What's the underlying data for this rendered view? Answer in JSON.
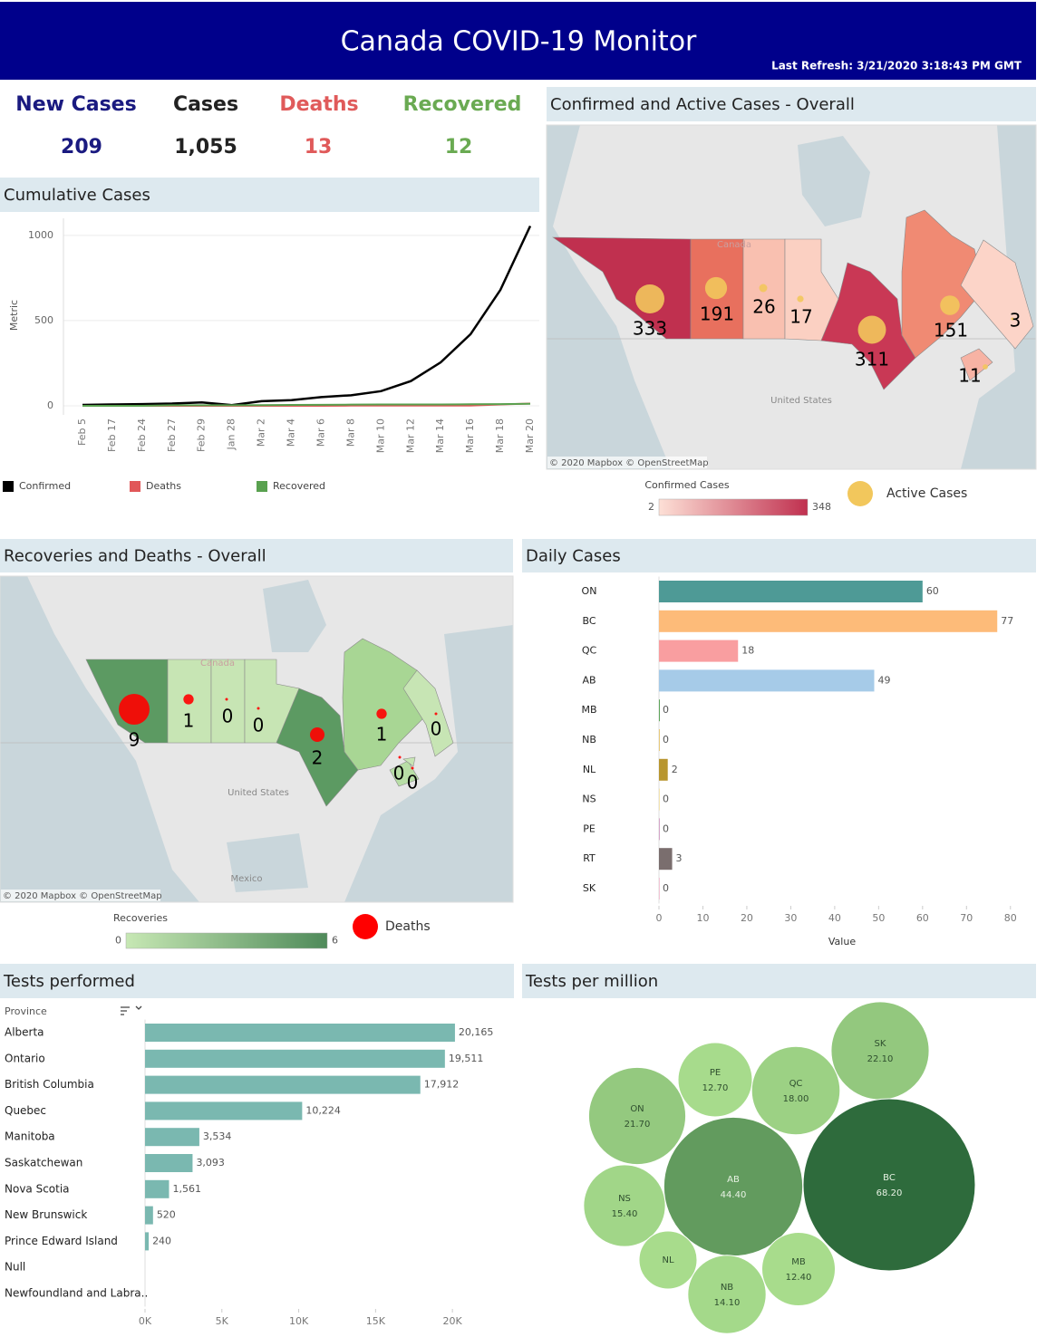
{
  "header": {
    "title": "Canada COVID-19 Monitor",
    "refresh": "Last Refresh: 3/21/2020 3:18:43 PM GMT"
  },
  "kpis": [
    {
      "label": "New Cases",
      "value": "209",
      "color": "#1a1a80"
    },
    {
      "label": "Cases",
      "value": "1,055",
      "color": "#222222"
    },
    {
      "label": "Deaths",
      "value": "13",
      "color": "#e05a5a"
    },
    {
      "label": "Recovered",
      "value": "12",
      "color": "#6aaa52"
    }
  ],
  "chart_data": [
    {
      "type": "line",
      "title": "Cumulative Cases",
      "y_label": "Metric",
      "categories": [
        "Feb 5",
        "Feb 17",
        "Feb 24",
        "Feb 27",
        "Feb 29",
        "Jan 28",
        "Mar 2",
        "Mar 4",
        "Mar 6",
        "Mar 8",
        "Mar 10",
        "Mar 12",
        "Mar 14",
        "Mar 16",
        "Mar 18",
        "Mar 20"
      ],
      "series": [
        {
          "name": "Confirmed",
          "color": "#000000",
          "values": [
            5,
            8,
            10,
            13,
            20,
            4,
            27,
            33,
            51,
            62,
            86,
            145,
            255,
            420,
            680,
            1055
          ]
        },
        {
          "name": "Deaths",
          "color": "#e15759",
          "values": [
            0,
            0,
            0,
            0,
            0,
            0,
            0,
            0,
            0,
            1,
            1,
            1,
            1,
            1,
            8,
            13
          ]
        },
        {
          "name": "Recovered",
          "color": "#59a14f",
          "values": [
            0,
            0,
            0,
            3,
            3,
            3,
            4,
            5,
            6,
            7,
            8,
            8,
            8,
            9,
            10,
            12
          ]
        }
      ],
      "ylim": [
        0,
        1100
      ],
      "yticks": [
        0,
        500,
        1000
      ],
      "grid": true
    },
    {
      "type": "map",
      "title": "Confirmed and Active Cases - Overall",
      "values": [
        333,
        191,
        26,
        17,
        311,
        151,
        3,
        11
      ],
      "marker_color": "#f2c75c",
      "region_colors": [
        "#c0304f",
        "#e8705e",
        "#f9c0b0",
        "#fbd0c2",
        "#c93855",
        "#f08a73",
        "#fcd4c8",
        "#f7b3a4"
      ],
      "color_legend": {
        "title": "Confirmed Cases",
        "min": 2,
        "max": 348,
        "colors": [
          "#fde0d6",
          "#c0304f"
        ]
      },
      "size_legend": "Active Cases",
      "basemap_labels": [
        "Canada",
        "United States"
      ],
      "credits": "© 2020 Mapbox © OpenStreetMap"
    },
    {
      "type": "map",
      "title": "Recoveries and Deaths - Overall",
      "values": [
        9,
        1,
        0,
        0,
        2,
        1,
        0,
        0,
        0
      ],
      "marker_color": "#ff0000",
      "region_colors": [
        "#5c9a62",
        "#c7e5b4",
        "#c7e5b4",
        "#c7e5b4",
        "#5c9a62",
        "#a8d694",
        "#c7e5b4",
        "#b8dea6",
        "#c7e5b4"
      ],
      "color_legend": {
        "title": "Recoveries",
        "min": 0,
        "max": 6,
        "colors": [
          "#c7e8b4",
          "#4f8a5a"
        ]
      },
      "size_legend": "Deaths",
      "basemap_labels": [
        "Canada",
        "United States",
        "Mexico"
      ],
      "credits": "© 2020 Mapbox © OpenStreetMap"
    },
    {
      "type": "hbar",
      "title": "Daily Cases",
      "x_label": "Value",
      "categories": [
        "ON",
        "BC",
        "QC",
        "AB",
        "MB",
        "NB",
        "NL",
        "NS",
        "PE",
        "RT",
        "SK"
      ],
      "values": [
        60,
        77,
        18,
        49,
        0,
        0,
        2,
        0,
        0,
        3,
        0
      ],
      "colors": [
        "#4e9a96",
        "#fdbb79",
        "#f99ea0",
        "#a6cbe8",
        "#5ea45a",
        "#e8c97a",
        "#b8962f",
        "#f4e4b0",
        "#d5a6c8",
        "#7a6e6e",
        "#f3c5d6"
      ],
      "xlim": [
        0,
        85
      ],
      "xticks": [
        0,
        10,
        20,
        30,
        40,
        50,
        60,
        70,
        80
      ]
    },
    {
      "type": "hbar",
      "title": "Tests performed",
      "header": "Province",
      "categories": [
        "Alberta",
        "Ontario",
        "British Columbia",
        "Quebec",
        "Manitoba",
        "Saskatchewan",
        "Nova Scotia",
        "New Brunswick",
        "Prince Edward Island",
        "Null",
        "Newfoundland and Labra.."
      ],
      "values": [
        20165,
        19511,
        17912,
        10224,
        3534,
        3093,
        1561,
        520,
        240,
        null,
        null
      ],
      "value_labels": [
        "20,165",
        "19,511",
        "17,912",
        "10,224",
        "3,534",
        "3,093",
        "1,561",
        "520",
        "240",
        null,
        null
      ],
      "color": "#7ab8b0",
      "xlim": [
        0,
        23000
      ],
      "xticks": [
        {
          "value": 0,
          "label": "0K"
        },
        {
          "value": 5000,
          "label": "5K"
        },
        {
          "value": 10000,
          "label": "10K"
        },
        {
          "value": 15000,
          "label": "15K"
        },
        {
          "value": 20000,
          "label": "20K"
        }
      ]
    },
    {
      "type": "bubble",
      "title": "Tests per million",
      "labels": [
        "ON",
        "PE",
        "QC",
        "SK",
        "NS",
        "AB",
        "BC",
        "NL",
        "NB",
        "MB"
      ],
      "values": [
        21.7,
        12.7,
        18.0,
        22.1,
        15.4,
        44.4,
        68.2,
        null,
        14.1,
        12.4
      ],
      "value_labels": [
        "21.70",
        "12.70",
        "18.00",
        "22.10",
        "15.40",
        "44.40",
        "68.20",
        null,
        "14.10",
        "12.40"
      ],
      "colors": [
        "#a8dc8c",
        "#2e6b3c"
      ]
    }
  ]
}
